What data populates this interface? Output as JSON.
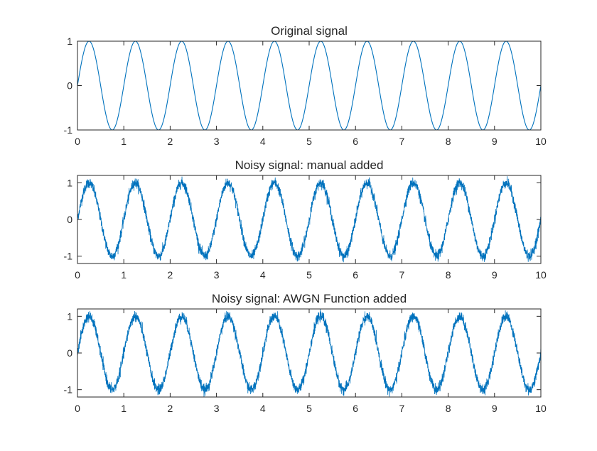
{
  "figure": {
    "background": "#ffffff",
    "axes_color": "#262626",
    "line_color": "#0072bd"
  },
  "chart_data": [
    {
      "type": "line",
      "title": "Original signal",
      "xlabel": "",
      "ylabel": "",
      "xlim": [
        0,
        10
      ],
      "ylim": [
        -1,
        1
      ],
      "xticks": [
        0,
        1,
        2,
        3,
        4,
        5,
        6,
        7,
        8,
        9,
        10
      ],
      "yticks": [
        -1,
        0,
        1
      ],
      "grid": false,
      "series": [
        {
          "function": "sin",
          "amplitude": 1,
          "frequency_hz": 1,
          "x_start": 0,
          "x_end": 10,
          "noise_std": 0
        }
      ]
    },
    {
      "type": "line",
      "title": "Noisy signal: manual added",
      "xlabel": "",
      "ylabel": "",
      "xlim": [
        0,
        10
      ],
      "ylim": [
        -1.2,
        1.2
      ],
      "xticks": [
        0,
        1,
        2,
        3,
        4,
        5,
        6,
        7,
        8,
        9,
        10
      ],
      "yticks": [
        -1,
        0,
        1
      ],
      "grid": false,
      "series": [
        {
          "function": "sin",
          "amplitude": 1,
          "frequency_hz": 1,
          "x_start": 0,
          "x_end": 10,
          "noise_std": 0.07
        }
      ]
    },
    {
      "type": "line",
      "title": "Noisy signal: AWGN Function added",
      "xlabel": "",
      "ylabel": "",
      "xlim": [
        0,
        10
      ],
      "ylim": [
        -1.2,
        1.2
      ],
      "xticks": [
        0,
        1,
        2,
        3,
        4,
        5,
        6,
        7,
        8,
        9,
        10
      ],
      "yticks": [
        -1,
        0,
        1
      ],
      "grid": false,
      "series": [
        {
          "function": "sin",
          "amplitude": 1,
          "frequency_hz": 1,
          "x_start": 0,
          "x_end": 10,
          "noise_std": 0.07
        }
      ]
    }
  ]
}
